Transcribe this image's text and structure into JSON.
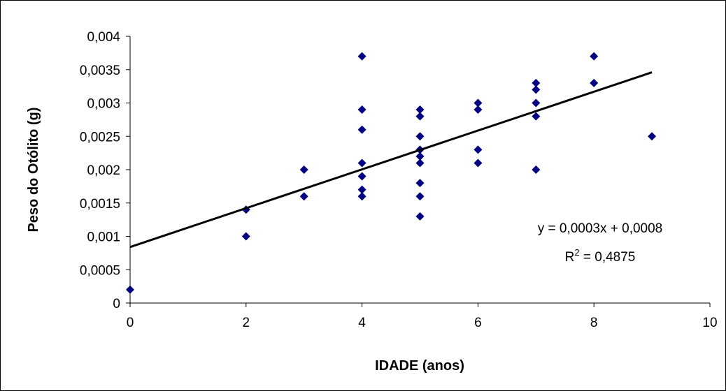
{
  "chart_data": {
    "type": "scatter",
    "xlabel": "IDADE (anos)",
    "ylabel": "Peso do Otólito (g)",
    "xlim": [
      0,
      10
    ],
    "ylim": [
      0,
      0.004
    ],
    "x_ticks": [
      0,
      2,
      4,
      6,
      8,
      10
    ],
    "x_tick_labels": [
      "0",
      "2",
      "4",
      "6",
      "8",
      "10"
    ],
    "y_ticks": [
      0,
      0.0005,
      0.001,
      0.0015,
      0.002,
      0.0025,
      0.003,
      0.0035,
      0.004
    ],
    "y_tick_labels": [
      "0",
      "0,0005",
      "0,001",
      "0,0015",
      "0,002",
      "0,0025",
      "0,003",
      "0,0035",
      "0,004"
    ],
    "grid": false,
    "legend": "none",
    "marker_color": "#000080",
    "points": [
      {
        "x": 0,
        "y": 0.0002
      },
      {
        "x": 2,
        "y": 0.0014
      },
      {
        "x": 2,
        "y": 0.001
      },
      {
        "x": 3,
        "y": 0.002
      },
      {
        "x": 3,
        "y": 0.0016
      },
      {
        "x": 4,
        "y": 0.0037
      },
      {
        "x": 4,
        "y": 0.0029
      },
      {
        "x": 4,
        "y": 0.0026
      },
      {
        "x": 4,
        "y": 0.0021
      },
      {
        "x": 4,
        "y": 0.0019
      },
      {
        "x": 4,
        "y": 0.0017
      },
      {
        "x": 4,
        "y": 0.0016
      },
      {
        "x": 5,
        "y": 0.0029
      },
      {
        "x": 5,
        "y": 0.0028
      },
      {
        "x": 5,
        "y": 0.0025
      },
      {
        "x": 5,
        "y": 0.0023
      },
      {
        "x": 5,
        "y": 0.0022
      },
      {
        "x": 5,
        "y": 0.0021
      },
      {
        "x": 5,
        "y": 0.0018
      },
      {
        "x": 5,
        "y": 0.0016
      },
      {
        "x": 5,
        "y": 0.0013
      },
      {
        "x": 6,
        "y": 0.003
      },
      {
        "x": 6,
        "y": 0.0029
      },
      {
        "x": 6,
        "y": 0.0023
      },
      {
        "x": 6,
        "y": 0.0021
      },
      {
        "x": 7,
        "y": 0.0033
      },
      {
        "x": 7,
        "y": 0.0032
      },
      {
        "x": 7,
        "y": 0.003
      },
      {
        "x": 7,
        "y": 0.0028
      },
      {
        "x": 7,
        "y": 0.002
      },
      {
        "x": 8,
        "y": 0.0037
      },
      {
        "x": 8,
        "y": 0.0033
      },
      {
        "x": 9,
        "y": 0.0025
      }
    ],
    "trendline": {
      "type": "linear",
      "color": "#000000",
      "start": {
        "x": 0,
        "y": 0.00084
      },
      "end": {
        "x": 9,
        "y": 0.00346
      },
      "equation": "y = 0,0003x + 0,0008",
      "r2_label": "R",
      "r2_superscript": "2",
      "r2_value": " = 0,4875"
    }
  }
}
